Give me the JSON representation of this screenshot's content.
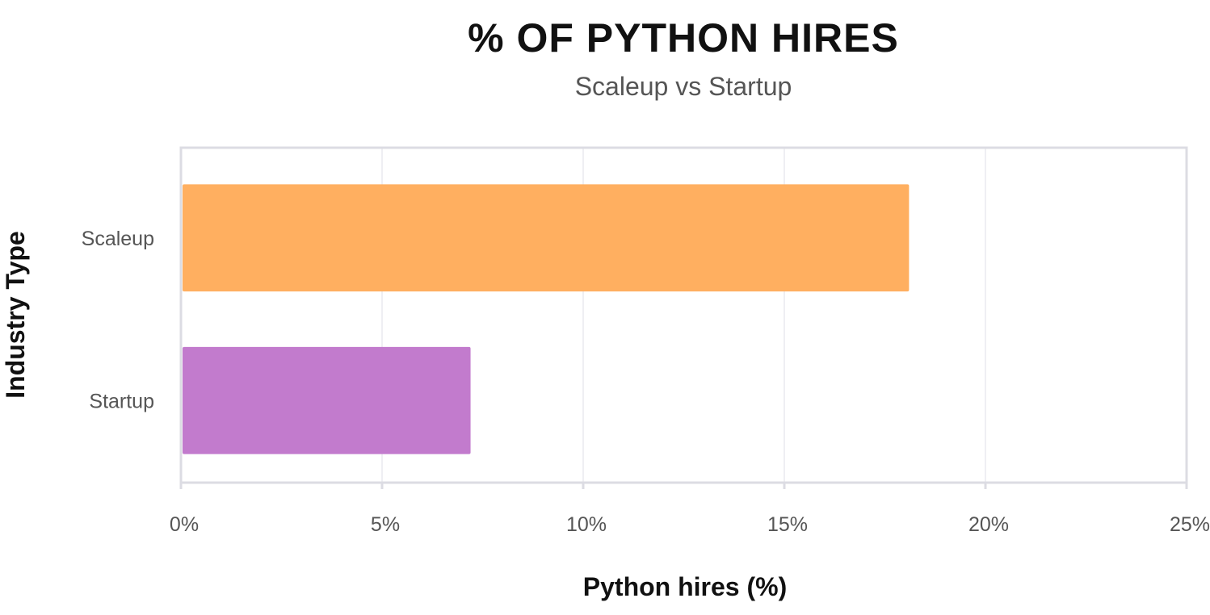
{
  "chart_data": {
    "type": "bar",
    "orientation": "horizontal",
    "title": "% OF PYTHON HIRES",
    "subtitle": "Scaleup vs Startup",
    "xlabel": "Python hires (%)",
    "ylabel": "Industry Type",
    "categories": [
      "Scaleup",
      "Startup"
    ],
    "values": [
      18.1,
      7.2
    ],
    "colors": [
      "#FFAF60",
      "#C27BCD"
    ],
    "xlim": [
      0,
      25
    ],
    "xticks": [
      0,
      5,
      10,
      15,
      20,
      25
    ],
    "xtick_labels": [
      "0%",
      "5%",
      "10%",
      "15%",
      "20%",
      "25%"
    ],
    "grid": true,
    "legend": "none"
  }
}
